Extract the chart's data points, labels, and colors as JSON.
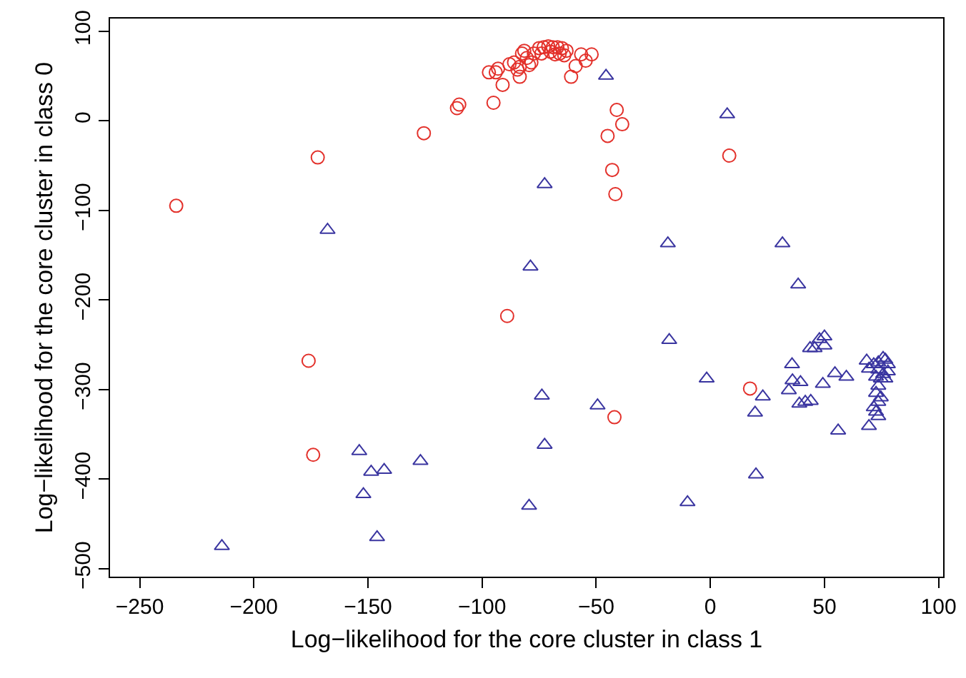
{
  "chart_data": {
    "type": "scatter",
    "xlabel": "Log−likelihood for the core cluster in class 1",
    "ylabel": "Log−likelihood for the core cluster in class 0",
    "xlim": [
      -263,
      102
    ],
    "ylim": [
      -509,
      114
    ],
    "xticks": [
      -250,
      -200,
      -150,
      -100,
      -50,
      0,
      50,
      100
    ],
    "yticks": [
      -500,
      -400,
      -300,
      -200,
      -100,
      0,
      100
    ],
    "grid": false,
    "series": [
      {
        "color": "#e3312b",
        "marker": "circle",
        "x": [
          -234,
          -172,
          -176,
          -174,
          -125.5,
          -111,
          -110,
          -95,
          -89,
          -97,
          -94,
          -93,
          -91,
          -88,
          -86,
          -83.5,
          -83.5,
          -84.5,
          -82.5,
          -81.5,
          -80.4,
          -79.4,
          -78.4,
          -77.3,
          -75,
          -74,
          -73,
          -71,
          -70,
          -69,
          -68,
          -67,
          -66,
          -65,
          -63,
          -64,
          -61,
          -59,
          -56.6,
          -54.6,
          -52,
          -41,
          -38.6,
          -45,
          -43,
          -41.6,
          8.3,
          17.4,
          -42
        ],
        "values": [
          -95,
          -41,
          -268,
          -373,
          -14,
          14,
          18,
          20,
          -218,
          54,
          54,
          58,
          40,
          63,
          65,
          60,
          49,
          57,
          75,
          78,
          70,
          62,
          65,
          75,
          81,
          75,
          82,
          83,
          77,
          82,
          74,
          82,
          75,
          81,
          78,
          73,
          49,
          61,
          74,
          67,
          74,
          12,
          -4,
          -17,
          -55,
          -82,
          -39,
          -299,
          -331
        ]
      },
      {
        "color": "#3a35a0",
        "marker": "triangle",
        "x": [
          -45.7,
          7.4,
          -167.7,
          -78.8,
          -72.6,
          -18.6,
          31.6,
          38.5,
          -18,
          -1.6,
          -73.8,
          -49.4,
          -72.6,
          20,
          -10,
          23,
          19.6,
          35.8,
          36,
          39.5,
          34.4,
          39,
          41.6,
          44,
          43.7,
          45.7,
          47.8,
          50,
          50,
          54.6,
          59.6,
          49.3,
          56,
          -153.8,
          -148.6,
          -142.9,
          -127,
          -152,
          -146,
          -214,
          -79.4,
          68.5,
          69.5,
          71.6,
          73.6,
          75.7,
          76.7,
          77.8,
          73.6,
          75.7,
          77.8,
          72.6,
          74.7,
          76.7,
          73.6,
          72.6,
          74.7,
          73.6,
          71.6,
          72.6,
          73.6,
          69.5
        ],
        "values": [
          50,
          7,
          -122,
          -163,
          -71,
          -137,
          -137,
          -183,
          -245,
          -288,
          -307,
          -318,
          -362,
          -395,
          -426,
          -308,
          -326,
          -272,
          -290,
          -292,
          -301,
          -316,
          -314,
          -313,
          -254,
          -254,
          -244,
          -241,
          -251,
          -282,
          -286,
          -294,
          -346,
          -369,
          -392,
          -390,
          -380,
          -417,
          -465,
          -475,
          -430,
          -268,
          -277,
          -272,
          -270,
          -265,
          -267,
          -272,
          -278,
          -283,
          -280,
          -286,
          -288,
          -288,
          -296,
          -304,
          -309,
          -314,
          -320,
          -325,
          -330,
          -341
        ]
      }
    ]
  }
}
